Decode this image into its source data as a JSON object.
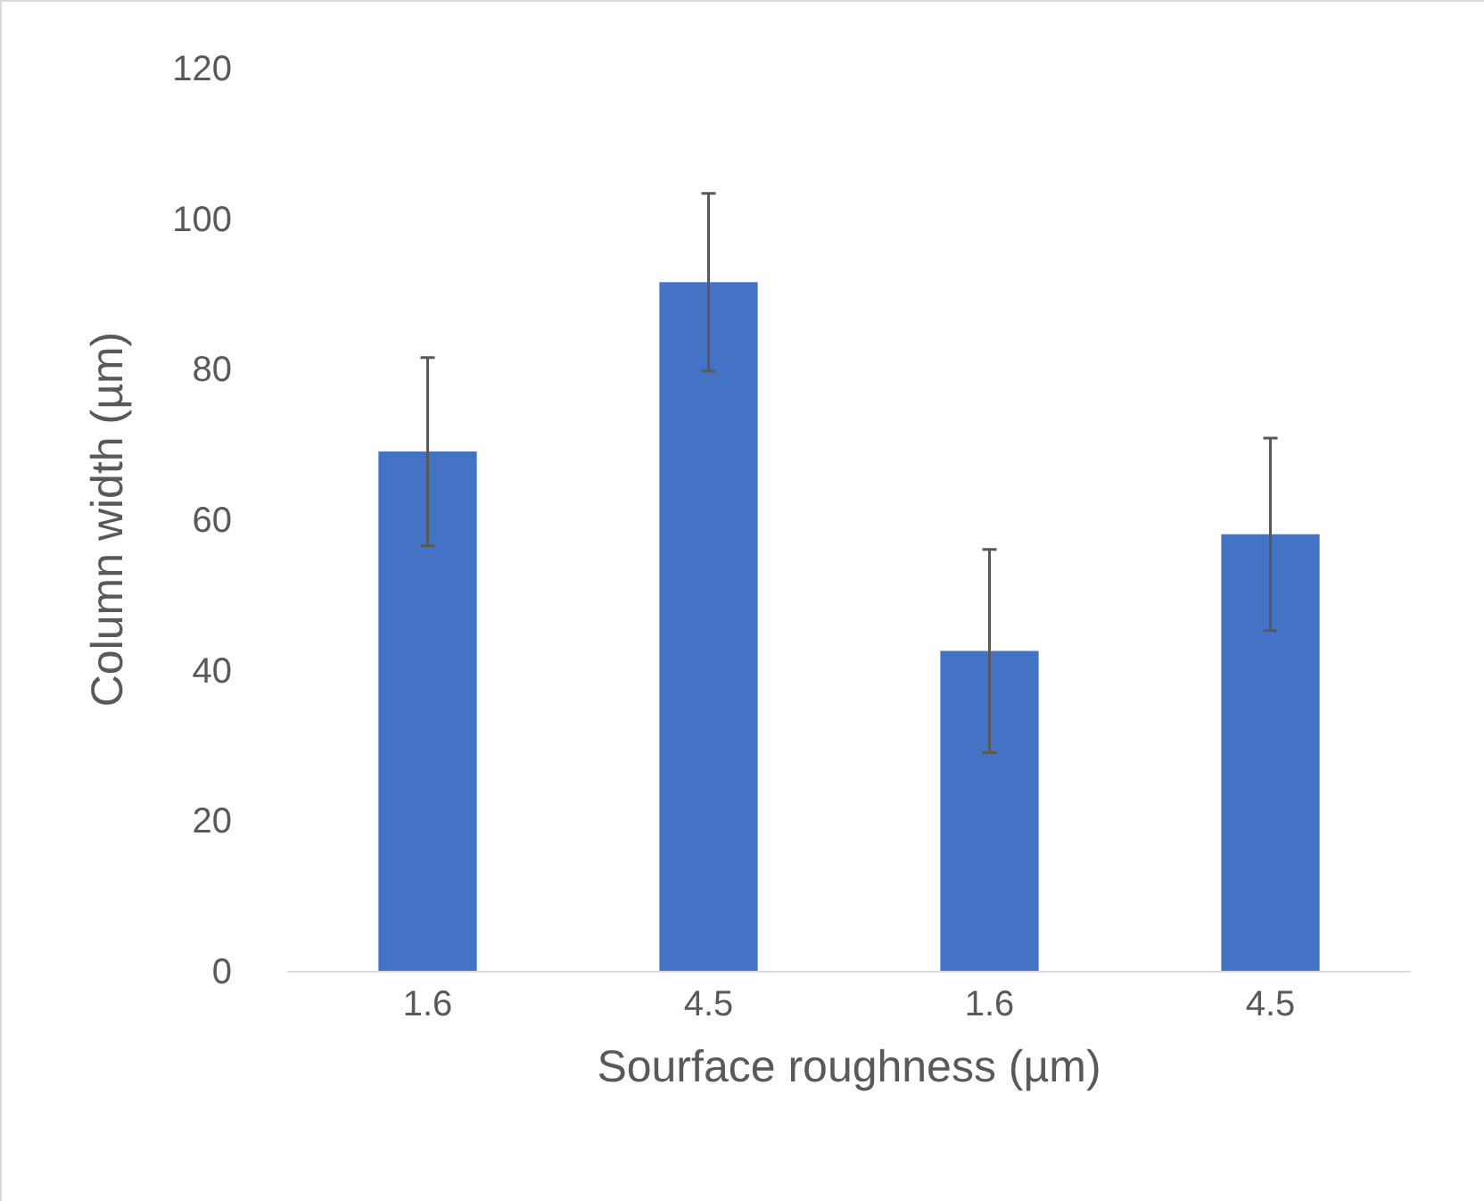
{
  "chart_data": {
    "type": "bar",
    "xlabel": "Sourface roughness (µm)",
    "ylabel": "Column width (µm)",
    "categories": [
      "1.6",
      "4.5",
      "1.6",
      "4.5"
    ],
    "values": [
      69,
      91.5,
      42.5,
      58
    ],
    "errors": [
      12.5,
      11.8,
      13.5,
      12.8
    ],
    "color": "#4472c4",
    "ylim": [
      0,
      120
    ],
    "yticks": [
      0,
      20,
      40,
      60,
      80,
      100,
      120
    ],
    "grid": false,
    "legend": false
  }
}
